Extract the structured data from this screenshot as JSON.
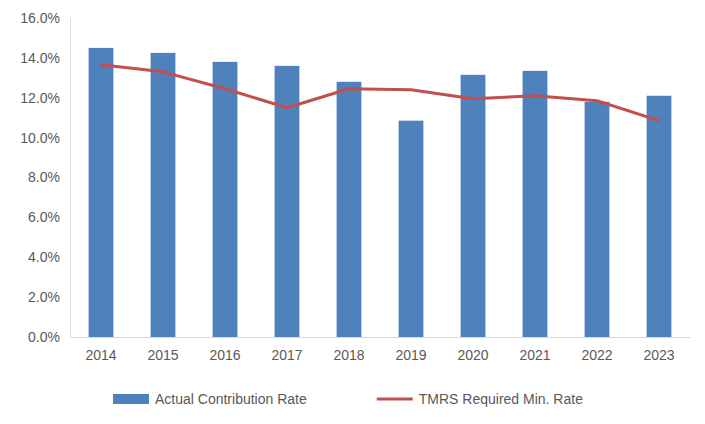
{
  "chart_data": {
    "type": "bar",
    "categories": [
      "2014",
      "2015",
      "2016",
      "2017",
      "2018",
      "2019",
      "2020",
      "2021",
      "2022",
      "2023"
    ],
    "series": [
      {
        "name": "Actual Contribution Rate",
        "type": "bar",
        "color": "#4f81bd",
        "values": [
          14.5,
          14.25,
          13.8,
          13.6,
          12.8,
          10.85,
          13.15,
          13.35,
          11.8,
          12.1
        ]
      },
      {
        "name": "TMRS Required Min. Rate",
        "type": "line",
        "color": "#c0504d",
        "values": [
          13.65,
          13.3,
          12.45,
          11.5,
          12.45,
          12.4,
          11.95,
          12.1,
          11.85,
          10.85
        ]
      }
    ],
    "ylim": [
      0,
      16
    ],
    "yticks": [
      {
        "value": 0,
        "label": "0.0%"
      },
      {
        "value": 2,
        "label": "2.0%"
      },
      {
        "value": 4,
        "label": "4.0%"
      },
      {
        "value": 6,
        "label": "6.0%"
      },
      {
        "value": 8,
        "label": "8.0%"
      },
      {
        "value": 10,
        "label": "10.0%"
      },
      {
        "value": 12,
        "label": "12.0%"
      },
      {
        "value": 14,
        "label": "14.0%"
      },
      {
        "value": 16,
        "label": "16.0%"
      }
    ],
    "grid": false,
    "legend": "bottom"
  }
}
